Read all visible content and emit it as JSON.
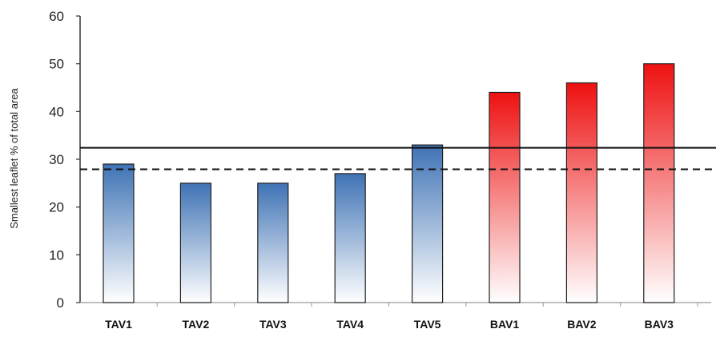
{
  "chart_data": {
    "type": "bar",
    "ylabel": "Smallest leaflet % of total area",
    "xlabel": "",
    "ylim": [
      0,
      60
    ],
    "yticks": [
      "0",
      "10",
      "20",
      "30",
      "40",
      "50",
      "60"
    ],
    "categories": [
      "TAV1",
      "TAV2",
      "TAV3",
      "TAV4",
      "TAV5",
      "BAV1",
      "BAV2",
      "BAV3"
    ],
    "values": [
      29,
      25,
      25,
      27,
      33,
      44,
      46,
      50
    ],
    "groups": [
      "TAV",
      "TAV",
      "TAV",
      "TAV",
      "TAV",
      "BAV",
      "BAV",
      "BAV"
    ],
    "reference_lines": [
      {
        "style": "solid",
        "value": 32.4
      },
      {
        "style": "dashed",
        "value": 27.9
      }
    ],
    "grid": false,
    "colors": {
      "TAV": "#3f73b5",
      "BAV": "#ee1111"
    }
  }
}
